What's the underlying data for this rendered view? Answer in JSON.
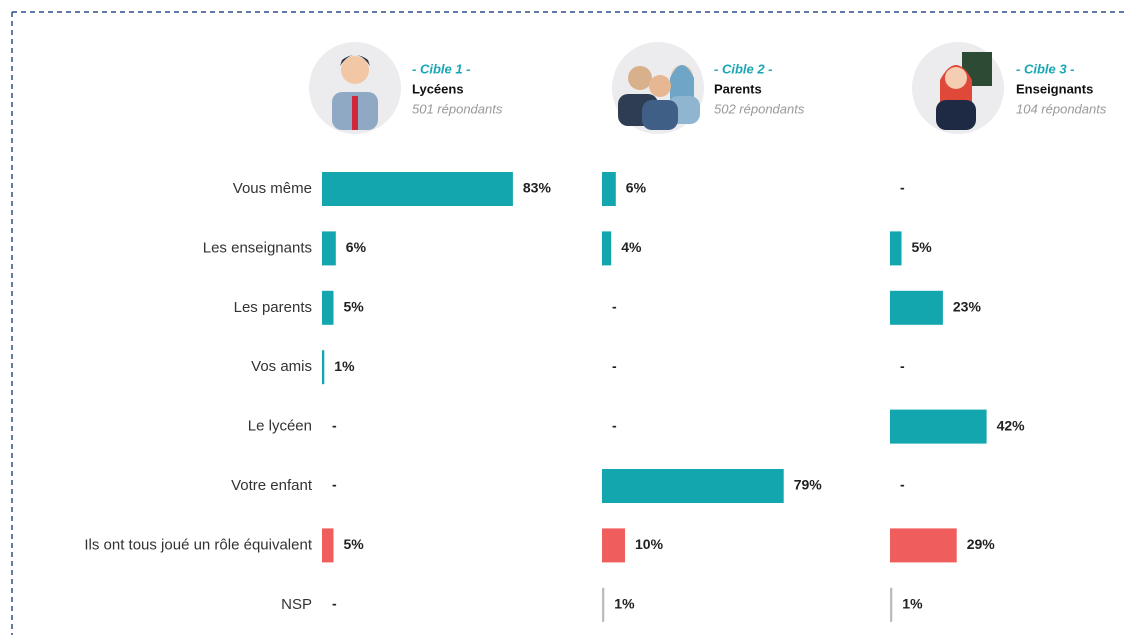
{
  "chart_data": {
    "type": "hbar-panels",
    "categories": [
      "Vous même",
      "Les enseignants",
      "Les parents",
      "Vos amis",
      "Le lycéen",
      "Votre enfant",
      "Ils ont tous joué un rôle équivalent",
      "NSP"
    ],
    "colors": [
      "#13a6ae",
      "#13a6ae",
      "#13a6ae",
      "#13a6ae",
      "#13a6ae",
      "#13a6ae",
      "#ef5e5d",
      "#bcbcbc"
    ],
    "series": [
      {
        "name": "Lycéens",
        "label": "- Cible 1 -",
        "respondents": "501 répondants",
        "values": [
          83,
          6,
          5,
          1,
          null,
          null,
          5,
          null
        ],
        "value_labels": [
          "83%",
          "6%",
          "5%",
          "1%",
          "-",
          "-",
          "5%",
          "-"
        ]
      },
      {
        "name": "Parents",
        "label": "- Cible 2 -",
        "respondents": "502 répondants",
        "values": [
          6,
          4,
          null,
          null,
          null,
          79,
          10,
          1
        ],
        "value_labels": [
          "6%",
          "4%",
          "-",
          "-",
          "-",
          "79%",
          "10%",
          "1%"
        ]
      },
      {
        "name": "Enseignants",
        "label": "- Cible 3 -",
        "respondents": "104 répondants",
        "values": [
          null,
          5,
          23,
          null,
          42,
          null,
          29,
          1
        ],
        "value_labels": [
          "-",
          "5%",
          "23%",
          "-",
          "42%",
          "-",
          "29%",
          "1%"
        ]
      }
    ]
  }
}
